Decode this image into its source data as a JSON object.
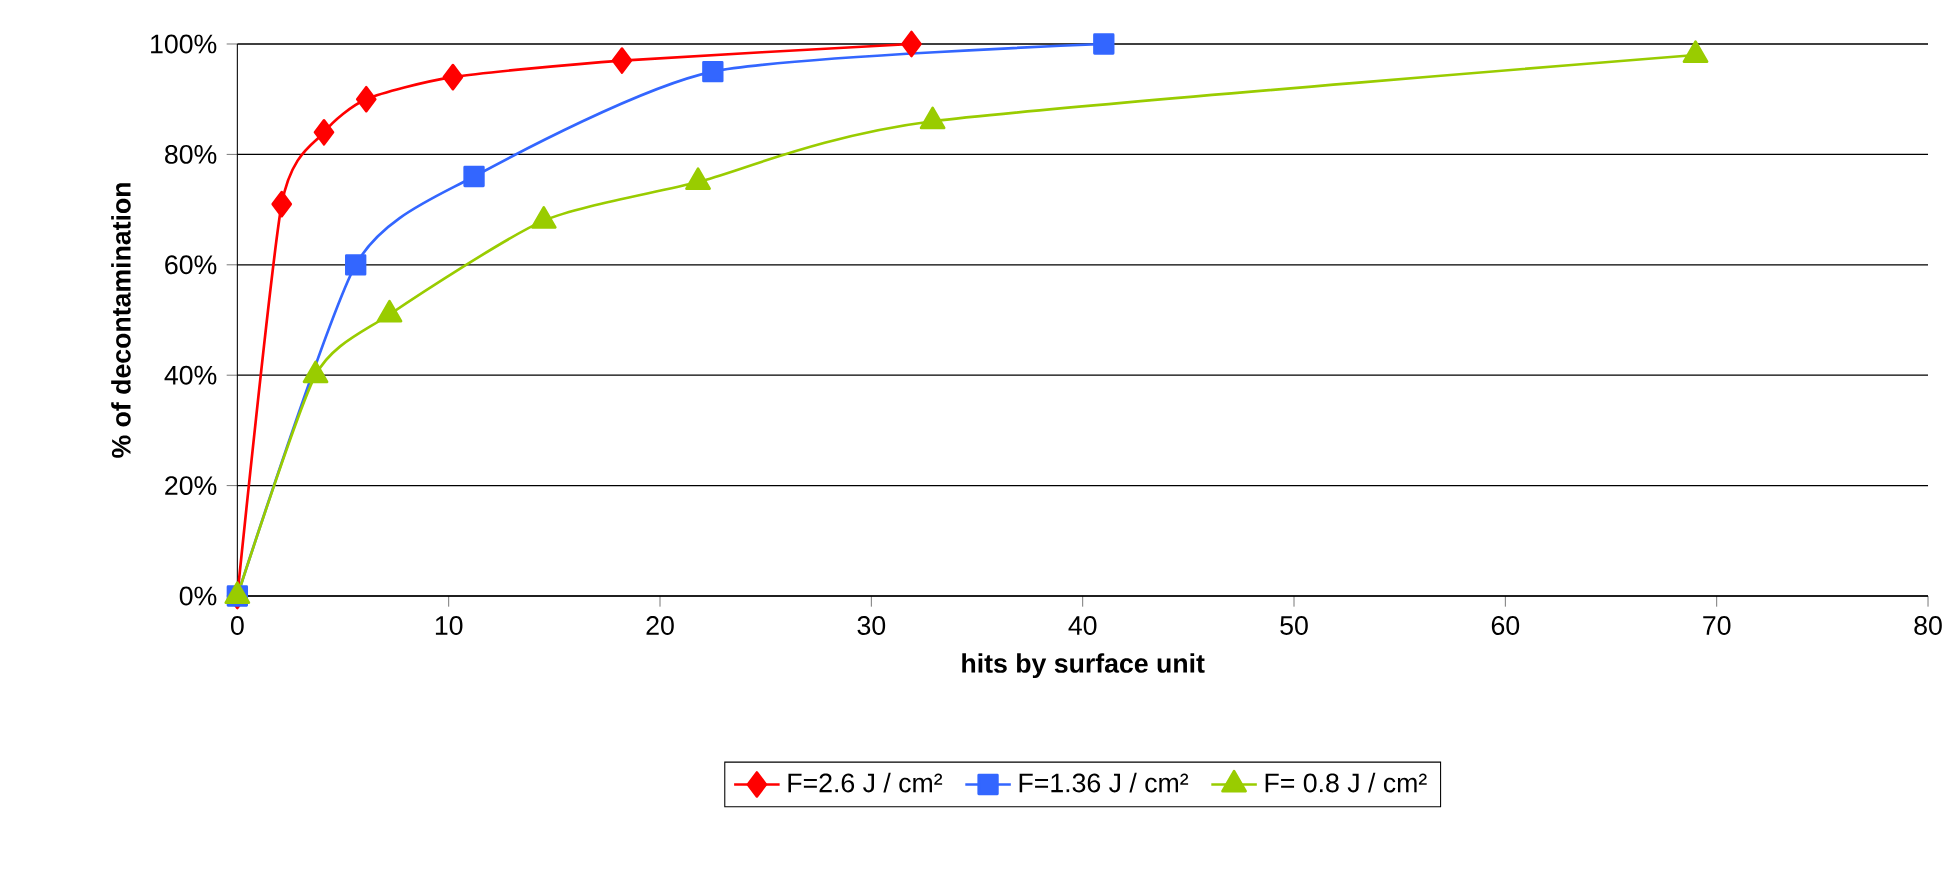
{
  "chart_data": {
    "type": "line",
    "xlabel": "hits by surface unit",
    "ylabel": "% of decontamination",
    "xlim": [
      0,
      80
    ],
    "ylim": [
      0,
      100
    ],
    "xticks": [
      0,
      10,
      20,
      30,
      40,
      50,
      60,
      70,
      80
    ],
    "yticks": [
      {
        "value": 0,
        "label": "0%"
      },
      {
        "value": 20,
        "label": "20%"
      },
      {
        "value": 40,
        "label": "40%"
      },
      {
        "value": 60,
        "label": "60%"
      },
      {
        "value": 80,
        "label": "80%"
      },
      {
        "value": 100,
        "label": "100%"
      }
    ],
    "grid": "y",
    "legend": "bottom",
    "series": [
      {
        "name": "F=2.6 J / cm²",
        "color": "#ff0000",
        "marker": "diamond",
        "x": [
          0,
          2.1,
          4.1,
          6.1,
          10.2,
          18.2,
          31.9
        ],
        "values": [
          0,
          71,
          84,
          90,
          94,
          97,
          100
        ]
      },
      {
        "name": "F=1.36 J / cm²",
        "color": "#3366ff",
        "marker": "square",
        "x": [
          0,
          5.6,
          11.2,
          22.5,
          41
        ],
        "values": [
          0,
          60,
          76,
          95,
          100
        ]
      },
      {
        "name": "F= 0.8 J / cm²",
        "color": "#99cc00",
        "marker": "triangle",
        "x": [
          0,
          3.7,
          7.2,
          14.5,
          21.8,
          32.9,
          69
        ],
        "values": [
          0,
          40,
          51,
          68,
          75,
          86,
          98
        ]
      }
    ]
  }
}
